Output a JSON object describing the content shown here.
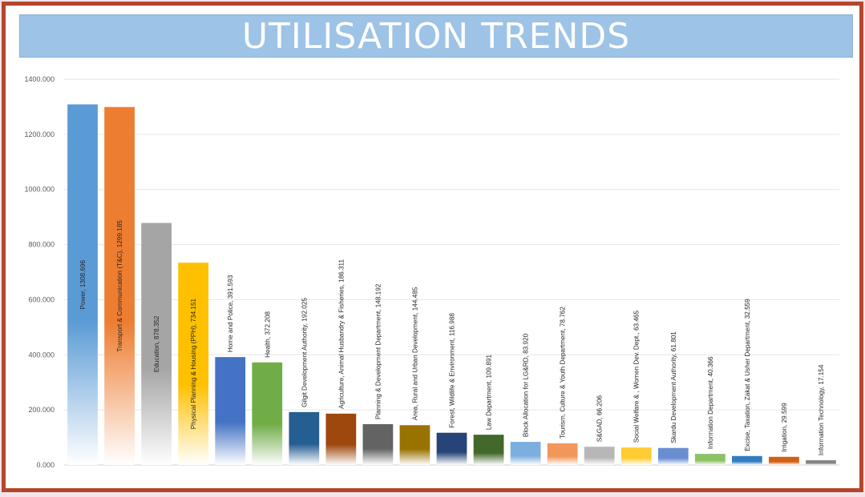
{
  "title": "UTILISATION TRENDS",
  "chart_data": {
    "type": "bar",
    "title": "UTILISATION TRENDS",
    "xlabel": "",
    "ylabel": "",
    "ylim": [
      0,
      1400
    ],
    "yticks": [
      "0.000",
      "200.000",
      "400.000",
      "600.000",
      "800.000",
      "1000.000",
      "1200.000",
      "1400.000"
    ],
    "grid": true,
    "categories": [
      "Power",
      "Transport & Communication (T&C)",
      "Education",
      "Physical Planning & Housing (PPH)",
      "Home and Police",
      "Health",
      "Gilgit Development Authority",
      "Agriculture, Animal Husbandry & Fisheries",
      "Planning & Development Department",
      "Area, Rural and Urban Development",
      "Forest, Wildlife & Environment",
      "Law Department",
      "Block Allocation for LG&RD",
      "Tourism, Culture & Youth Department",
      "S&GAD",
      "Social Welfare & , Women Dev. Dept.",
      "Skardu Development Authority",
      "Information Department",
      "Excise, Taxation, Zakat & Usher Department",
      "Irrigation",
      "Information Technology"
    ],
    "values": [
      1308.696,
      1299.185,
      878.352,
      734.151,
      391.593,
      372.208,
      192.025,
      186.311,
      148.192,
      144.485,
      116.988,
      109.891,
      83.92,
      78.762,
      66.206,
      63.465,
      61.801,
      40.366,
      32.559,
      29.599,
      17.154
    ],
    "data_labels": [
      "Power, 1308.696",
      "Transport & Communication (T&C), 1299.185",
      "Education, 878.352",
      "Physical Planning & Housing (PPH), 734.151",
      "Home and Police, 391.593",
      "Health, 372.208",
      "Gilgit Development Authority, 192.025",
      "Agriculture, Animal Husbandry & Fisheries, 186.311",
      "Planning & Development Department, 148.192",
      "Area, Rural and Urban Development, 144.485",
      "Forest, Wildlife & Environment, 116.988",
      "Law Department, 109.891",
      "Block Allocation for LG&RD, 83.920",
      "Tourism, Culture & Youth Department, 78.762",
      "S&GAD, 66.206",
      "Social Welfare & , Women Dev. Dept., 63.465",
      "Skardu Development Authority, 61.801",
      "Information Department, 40.366",
      "Excise, Taxation, Zakat & Usher Department, 32.559",
      "Irrigation, 29.599",
      "Information Technology, 17.154"
    ],
    "colors": [
      "#5b9bd5",
      "#ed7d31",
      "#a5a5a5",
      "#ffc000",
      "#4472c4",
      "#70ad47",
      "#255e91",
      "#9e480e",
      "#636363",
      "#997300",
      "#264478",
      "#43682b",
      "#7cafdd",
      "#f1975a",
      "#b7b7b7",
      "#ffcd33",
      "#698ed0",
      "#8cc168",
      "#327dc2",
      "#d26012",
      "#848484"
    ]
  }
}
